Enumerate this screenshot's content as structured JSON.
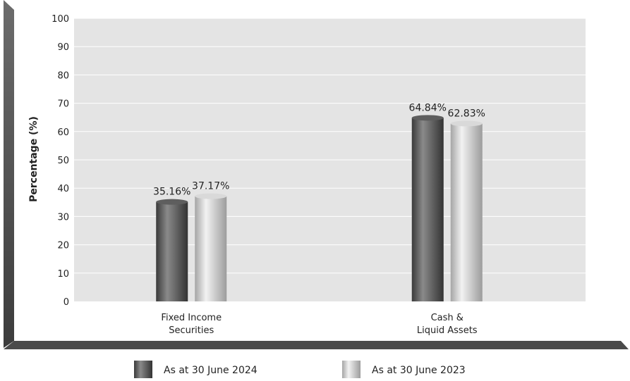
{
  "chart_data": {
    "type": "bar",
    "title": "",
    "xlabel": "",
    "ylabel": "Percentage (%)",
    "ylim": [
      0,
      100
    ],
    "yticks": [
      "0",
      "10",
      "20",
      "30",
      "40",
      "50",
      "60",
      "70",
      "80",
      "90",
      "100"
    ],
    "grid": true,
    "legend_position": "bottom",
    "categories": [
      [
        "Fixed Income",
        "Securities"
      ],
      [
        "Cash &",
        "Liquid Assets"
      ]
    ],
    "series": [
      {
        "name": "As at 30 June 2024",
        "values": [
          35.16,
          64.84
        ],
        "labels": [
          "35.16%",
          "64.84%"
        ],
        "color": "#4e4e4e"
      },
      {
        "name": "As at 30 June 2023",
        "values": [
          37.17,
          62.83
        ],
        "labels": [
          "37.17%",
          "62.83%"
        ],
        "color": "#c8c8c8"
      }
    ],
    "colors": {
      "plot_background": "#e4e4e4",
      "frame": "#5a5a5a",
      "grid": "#ffffff"
    }
  }
}
